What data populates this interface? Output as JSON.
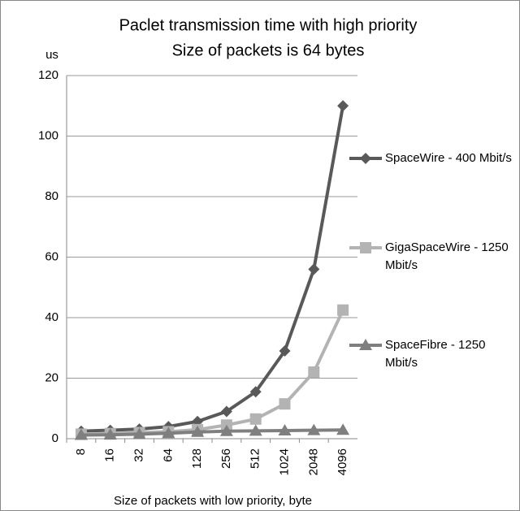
{
  "chart_data": {
    "type": "line",
    "title": "Paclet transmission time with high priority",
    "subtitle": "Size of packets is 64 bytes",
    "y_label": "us",
    "x_label": "Size of packets with low priority, byte",
    "categories": [
      "8",
      "16",
      "32",
      "64",
      "128",
      "256",
      "512",
      "1024",
      "2048",
      "4096"
    ],
    "series": [
      {
        "name": "SpaceWire - 400 Mbit/s",
        "color": "#595959",
        "marker": "diamond",
        "values": [
          2.5,
          2.8,
          3.2,
          4,
          5.7,
          9,
          15.5,
          29,
          56,
          110
        ]
      },
      {
        "name": "GigaSpaceWire - 1250 Mbit/s",
        "color": "#b3b3b3",
        "marker": "square",
        "values": [
          1.5,
          1.7,
          2,
          2.3,
          3,
          4.5,
          6.5,
          11.5,
          22,
          42.5
        ]
      },
      {
        "name": "SpaceFibre - 1250 Mbit/s",
        "color": "#7f7f7f",
        "marker": "triangle",
        "values": [
          1.2,
          1.3,
          1.5,
          1.8,
          2.2,
          2.5,
          2.6,
          2.7,
          2.8,
          2.9
        ]
      }
    ],
    "ylim": [
      0,
      120
    ],
    "yticks": [
      0,
      20,
      40,
      60,
      80,
      100,
      120
    ],
    "grid": true,
    "legend": "right"
  }
}
